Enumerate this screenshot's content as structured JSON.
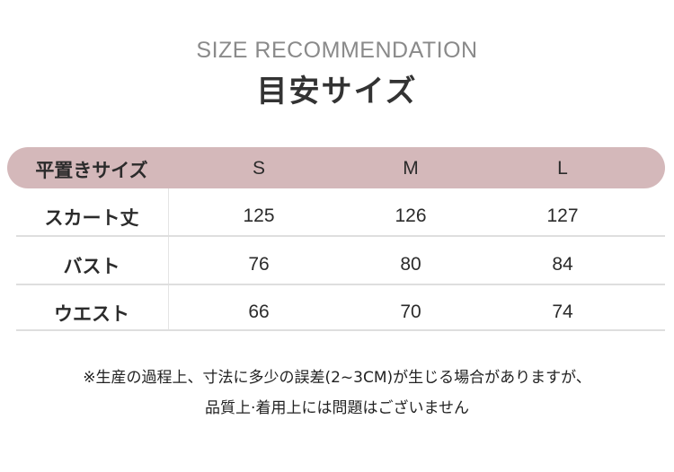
{
  "header": {
    "subtitle": "SIZE RECOMMENDATION",
    "title": "目安サイズ"
  },
  "table": {
    "corner_label": "平置きサイズ",
    "sizes": [
      "S",
      "M",
      "L"
    ],
    "rows": [
      {
        "label": "スカート丈",
        "values": [
          "125",
          "126",
          "127"
        ]
      },
      {
        "label": "バスト",
        "values": [
          "76",
          "80",
          "84"
        ]
      },
      {
        "label": "ウエスト",
        "values": [
          "66",
          "70",
          "74"
        ]
      }
    ],
    "header_color": "#d4b8ba"
  },
  "note": {
    "line1": "※生産の過程上、寸法に多少の誤差(2~3CM)が生じる場合がありますが、",
    "line2": "品質上·着用上には問題はございません"
  }
}
